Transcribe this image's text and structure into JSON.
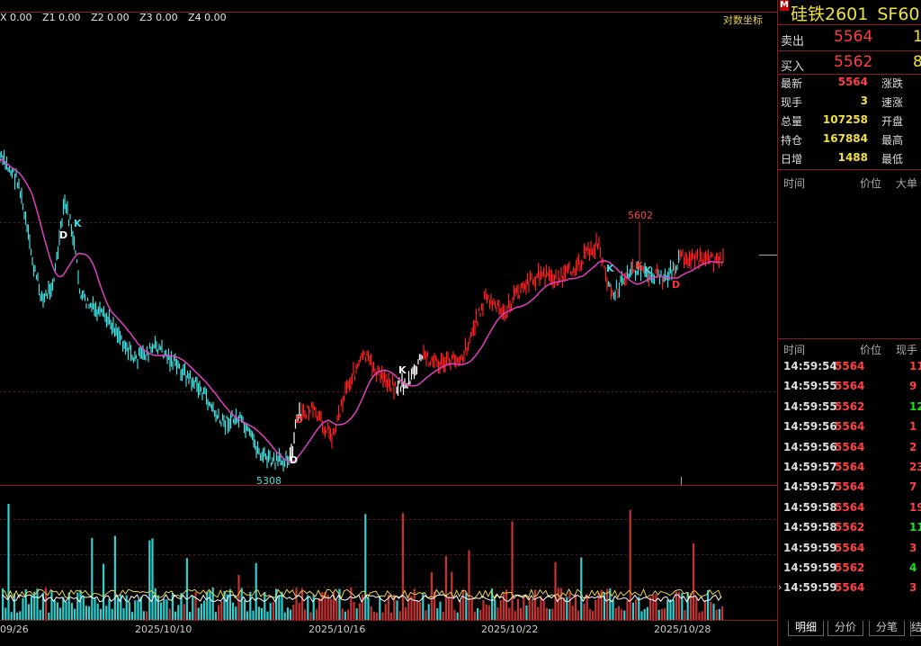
{
  "indicators": {
    "items": [
      "X 0.00",
      "Z1 0.00",
      "Z2 0.00",
      "Z3 0.00",
      "Z4 0.00"
    ],
    "log_toggle": "对数坐标"
  },
  "chart": {
    "high_label": "5602",
    "low_label": "5308",
    "x_labels": [
      "09/26",
      "2025/10/10",
      "2025/10/16",
      "2025/10/22",
      "2025/10/28"
    ],
    "markers": [
      "D",
      "K",
      "D",
      "K",
      "D",
      "K",
      "K",
      "K",
      "D"
    ]
  },
  "chart_data": {
    "type": "line",
    "x_ticks": [
      "09/26",
      "2025/10/10",
      "2025/10/16",
      "2025/10/22",
      "2025/10/28"
    ],
    "annotations": [
      "5602",
      "5308"
    ],
    "price_min": 5308,
    "price_max": 5602,
    "colors": {
      "down": "#40e0e0",
      "up": "#ff2020",
      "neutral": "#ffffff",
      "ma": "#e040c0",
      "vol_up": "#c83232",
      "vol_down": "#30d0d0",
      "vol_ma": "#e8d24a"
    }
  },
  "panel": {
    "corner": "M",
    "name": "硅铁2601",
    "code": "SF60",
    "ask": {
      "label": "卖出",
      "price": "5564",
      "vol": "1"
    },
    "bid": {
      "label": "买入",
      "price": "5562",
      "vol": "8"
    },
    "quote": [
      {
        "label": "最新",
        "value": "5564",
        "label2": "涨跌",
        "color": "red"
      },
      {
        "label": "现手",
        "value": "3",
        "label2": "速涨",
        "color": "yellow"
      },
      {
        "label": "总量",
        "value": "107258",
        "label2": "开盘",
        "color": "yellow"
      },
      {
        "label": "持仓",
        "value": "167884",
        "label2": "最高",
        "color": "yellow"
      },
      {
        "label": "日增",
        "value": "1488",
        "label2": "最低",
        "color": "yellow"
      }
    ],
    "bigorder_head": {
      "time": "时间",
      "price": "价位",
      "big": "大单"
    },
    "ticks_head": {
      "time": "时间",
      "price": "价位",
      "vol": "现手"
    },
    "ticks": [
      {
        "time": "14:59:54",
        "price": "5564",
        "vol": "11",
        "pc": "red",
        "vc": "red"
      },
      {
        "time": "14:59:55",
        "price": "5564",
        "vol": "9",
        "pc": "red",
        "vc": "red"
      },
      {
        "time": "14:59:55",
        "price": "5562",
        "vol": "12",
        "pc": "red",
        "vc": "green"
      },
      {
        "time": "14:59:56",
        "price": "5564",
        "vol": "1",
        "pc": "red",
        "vc": "red"
      },
      {
        "time": "14:59:56",
        "price": "5564",
        "vol": "2",
        "pc": "red",
        "vc": "red"
      },
      {
        "time": "14:59:57",
        "price": "5564",
        "vol": "23",
        "pc": "red",
        "vc": "red"
      },
      {
        "time": "14:59:57",
        "price": "5564",
        "vol": "7",
        "pc": "red",
        "vc": "red"
      },
      {
        "time": "14:59:58",
        "price": "5564",
        "vol": "19",
        "pc": "red",
        "vc": "red"
      },
      {
        "time": "14:59:58",
        "price": "5562",
        "vol": "11",
        "pc": "red",
        "vc": "green"
      },
      {
        "time": "14:59:59",
        "price": "5564",
        "vol": "3",
        "pc": "red",
        "vc": "red"
      },
      {
        "time": "14:59:59",
        "price": "5562",
        "vol": "4",
        "pc": "red",
        "vc": "green"
      },
      {
        "time": "14:59:59",
        "price": "5564",
        "vol": "3",
        "pc": "red",
        "vc": "red"
      }
    ],
    "tabs": [
      "明细",
      "分价",
      "分笔",
      "结"
    ]
  }
}
